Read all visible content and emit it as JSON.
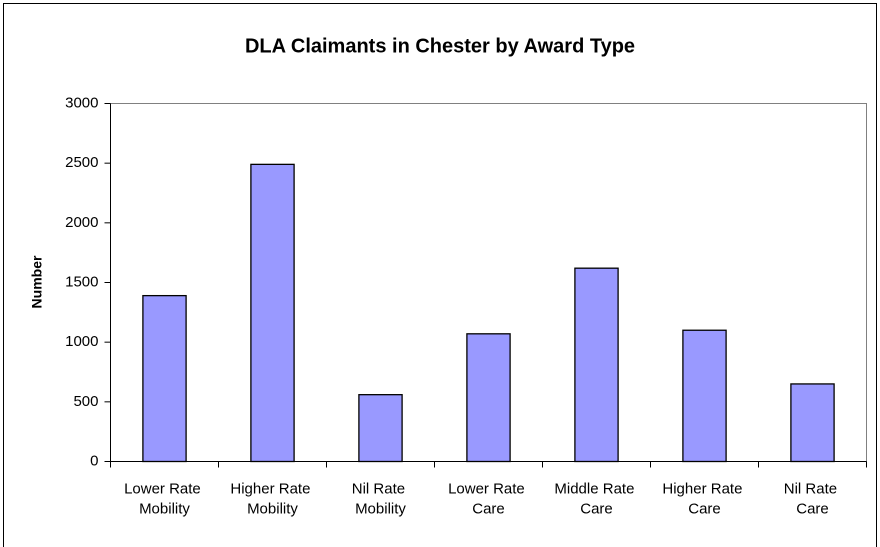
{
  "chart_data": {
    "type": "bar",
    "title": "DLA Claimants in Chester by Award Type",
    "y_label": "Number",
    "categories": [
      "Lower Rate Mobility",
      "Higher Rate Mobility",
      "Nil Rate Mobility",
      "Lower Rate Care",
      "Middle Rate Care",
      "Higher Rate Care",
      "Nil Rate Care"
    ],
    "values": [
      1390,
      2490,
      560,
      1070,
      1620,
      1100,
      650
    ],
    "color": "#9999ff",
    "ylim": [
      0,
      3000
    ],
    "yticks": [
      0,
      500,
      1000,
      1500,
      2000,
      2500,
      3000
    ],
    "grid": false
  }
}
